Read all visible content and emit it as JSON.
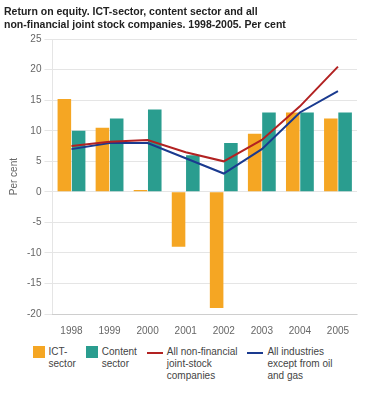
{
  "chart_data": {
    "type": "bar",
    "title": [
      "Return on equity. ICT-sector, content sector and all",
      "non-financial joint stock companies. 1998-2005. Per cent"
    ],
    "ylabel": "Per cent",
    "categories": [
      "1998",
      "1999",
      "2000",
      "2001",
      "2002",
      "2003",
      "2004",
      "2005"
    ],
    "series": [
      {
        "name": "ICT-\nsector",
        "type": "bar",
        "color": "#f5a623",
        "values": [
          15.2,
          10.5,
          0.3,
          -9.0,
          -19.0,
          9.5,
          13.0,
          12.0
        ]
      },
      {
        "name": "Content\nsector",
        "type": "bar",
        "color": "#2a9d8f",
        "values": [
          10.0,
          12.0,
          13.5,
          6.0,
          8.0,
          13.0,
          13.0,
          13.0
        ]
      },
      {
        "name": "All non-financial\njoint-stock\ncompanies",
        "type": "line",
        "color": "#b22222",
        "values": [
          7.5,
          8.2,
          8.5,
          6.5,
          5.0,
          8.5,
          14.0,
          20.5
        ]
      },
      {
        "name": "All industries\nexcept from oil\nand gas",
        "type": "line",
        "color": "#1a3a8f",
        "values": [
          7.0,
          8.0,
          8.0,
          5.5,
          3.0,
          7.0,
          13.0,
          16.5
        ]
      }
    ],
    "ylim": [
      -20,
      25
    ],
    "yticks": [
      -20,
      -15,
      -10,
      -5,
      0,
      5,
      10,
      15,
      20,
      25
    ],
    "grid": true,
    "legend": "bottom"
  }
}
